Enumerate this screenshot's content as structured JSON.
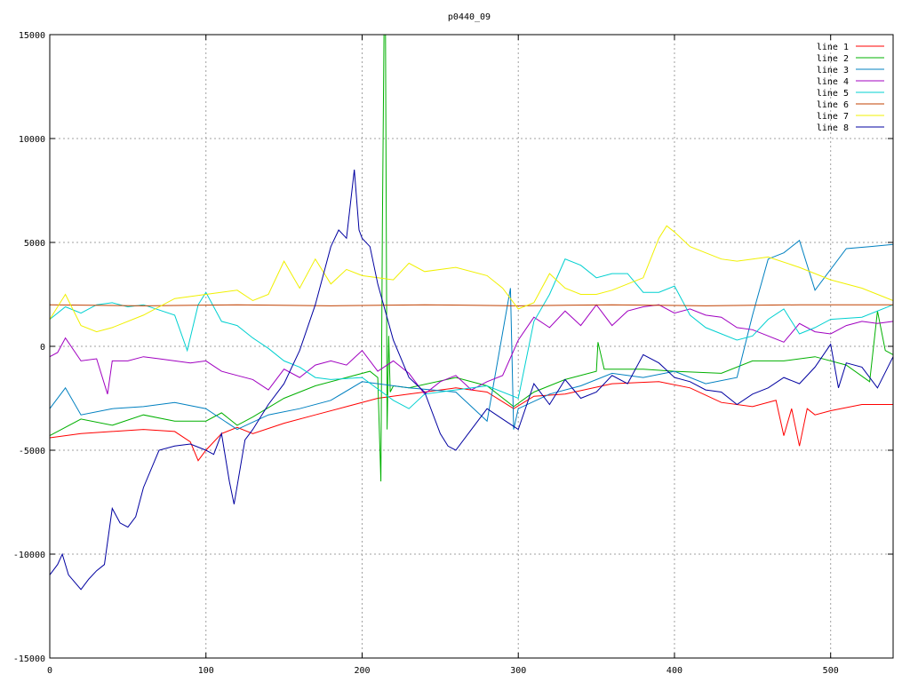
{
  "chart_data": {
    "type": "line",
    "title": "p0440_09",
    "xlabel": "",
    "ylabel": "",
    "xlim": [
      0,
      540
    ],
    "ylim": [
      -15000,
      15000
    ],
    "xticks": [
      0,
      100,
      200,
      300,
      400,
      500
    ],
    "yticks": [
      -15000,
      -10000,
      -5000,
      0,
      5000,
      10000,
      15000
    ],
    "grid": true,
    "legend_position": "top-right",
    "series": [
      {
        "name": "line 1",
        "color": "#ff0000",
        "x": [
          0,
          20,
          40,
          60,
          80,
          90,
          95,
          100,
          110,
          120,
          130,
          150,
          170,
          190,
          210,
          230,
          260,
          280,
          297,
          310,
          330,
          360,
          390,
          410,
          430,
          450,
          465,
          470,
          475,
          480,
          485,
          490,
          500,
          520,
          540
        ],
        "y": [
          -4400,
          -4200,
          -4100,
          -4000,
          -4100,
          -4600,
          -5500,
          -5000,
          -4200,
          -3900,
          -4200,
          -3700,
          -3300,
          -2900,
          -2500,
          -2300,
          -2000,
          -2200,
          -3000,
          -2400,
          -2300,
          -1800,
          -1700,
          -2000,
          -2700,
          -2900,
          -2600,
          -4300,
          -3000,
          -4800,
          -3000,
          -3300,
          -3100,
          -2800,
          -2800
        ]
      },
      {
        "name": "line 2",
        "color": "#00b000",
        "x": [
          0,
          20,
          40,
          60,
          80,
          100,
          110,
          120,
          130,
          150,
          170,
          190,
          205,
          210,
          212,
          213,
          214,
          215,
          216,
          217,
          218,
          220,
          230,
          260,
          280,
          297,
          310,
          330,
          350,
          351,
          355,
          380,
          400,
          430,
          450,
          470,
          490,
          510,
          525,
          530,
          535,
          540
        ],
        "y": [
          -4300,
          -3500,
          -3800,
          -3300,
          -3600,
          -3600,
          -3200,
          -3800,
          -3400,
          -2500,
          -1900,
          -1500,
          -1200,
          -1500,
          -6500,
          5800,
          15000,
          15000,
          -4000,
          500,
          -2200,
          -1900,
          -2000,
          -1500,
          -1900,
          -2900,
          -2200,
          -1600,
          -1200,
          200,
          -1100,
          -1100,
          -1200,
          -1300,
          -700,
          -700,
          -500,
          -900,
          -1700,
          1700,
          -200,
          -400
        ]
      },
      {
        "name": "line 3",
        "color": "#0080c0",
        "x": [
          0,
          10,
          20,
          40,
          60,
          80,
          100,
          120,
          140,
          160,
          180,
          200,
          230,
          260,
          280,
          295,
          297,
          300,
          320,
          340,
          360,
          380,
          400,
          420,
          440,
          450,
          460,
          470,
          480,
          490,
          510,
          525,
          540
        ],
        "y": [
          -3000,
          -2000,
          -3300,
          -3000,
          -2900,
          -2700,
          -3000,
          -4000,
          -3300,
          -3000,
          -2600,
          -1700,
          -2000,
          -2200,
          -3600,
          2800,
          -4000,
          -3000,
          -2300,
          -1900,
          -1300,
          -1500,
          -1200,
          -1800,
          -1500,
          1500,
          4200,
          4500,
          5100,
          2700,
          4700,
          4800,
          4900
        ]
      },
      {
        "name": "line 4",
        "color": "#a000c0",
        "x": [
          0,
          5,
          10,
          20,
          30,
          37,
          40,
          50,
          60,
          70,
          90,
          100,
          110,
          120,
          130,
          140,
          150,
          160,
          170,
          180,
          190,
          200,
          210,
          220,
          230,
          240,
          250,
          260,
          270,
          280,
          290,
          300,
          310,
          320,
          330,
          340,
          350,
          360,
          370,
          380,
          390,
          400,
          410,
          420,
          430,
          440,
          450,
          460,
          470,
          480,
          490,
          500,
          510,
          520,
          530,
          540
        ],
        "y": [
          -500,
          -300,
          400,
          -700,
          -600,
          -2300,
          -700,
          -700,
          -500,
          -600,
          -800,
          -700,
          -1200,
          -1400,
          -1600,
          -2100,
          -1100,
          -1500,
          -900,
          -700,
          -900,
          -200,
          -1200,
          -700,
          -1300,
          -2300,
          -1700,
          -1400,
          -2100,
          -1700,
          -1400,
          300,
          1400,
          900,
          1700,
          1000,
          2000,
          1000,
          1700,
          1900,
          2000,
          1600,
          1800,
          1500,
          1400,
          900,
          800,
          500,
          200,
          1100,
          700,
          600,
          1000,
          1200,
          1100,
          1200
        ]
      },
      {
        "name": "line 5",
        "color": "#00d0d0",
        "x": [
          0,
          10,
          20,
          30,
          40,
          50,
          60,
          80,
          88,
          95,
          100,
          110,
          120,
          130,
          140,
          150,
          160,
          170,
          180,
          200,
          220,
          230,
          240,
          260,
          280,
          300,
          310,
          320,
          330,
          340,
          350,
          360,
          370,
          380,
          390,
          400,
          410,
          420,
          440,
          450,
          460,
          470,
          480,
          490,
          500,
          520,
          540
        ],
        "y": [
          1300,
          1900,
          1600,
          2000,
          2100,
          1900,
          2000,
          1500,
          -200,
          2000,
          2600,
          1200,
          1000,
          400,
          -100,
          -700,
          -1000,
          -1500,
          -1600,
          -1500,
          -2600,
          -3000,
          -2300,
          -2100,
          -1900,
          -2500,
          1200,
          2500,
          4200,
          3900,
          3300,
          3500,
          3500,
          2600,
          2600,
          2900,
          1500,
          900,
          300,
          500,
          1300,
          1800,
          600,
          900,
          1300,
          1400,
          2000
        ]
      },
      {
        "name": "line 6",
        "color": "#c04000",
        "x": [
          0,
          60,
          120,
          180,
          240,
          300,
          360,
          420,
          480,
          540
        ],
        "y": [
          2000,
          1950,
          2000,
          1950,
          2000,
          1950,
          2000,
          1950,
          2000,
          2000
        ]
      },
      {
        "name": "line 7",
        "color": "#f0f000",
        "x": [
          0,
          10,
          20,
          30,
          40,
          60,
          80,
          100,
          120,
          130,
          140,
          150,
          160,
          170,
          180,
          190,
          200,
          210,
          220,
          230,
          240,
          260,
          280,
          290,
          300,
          310,
          320,
          330,
          340,
          350,
          360,
          370,
          380,
          390,
          395,
          400,
          410,
          420,
          430,
          440,
          460,
          480,
          500,
          520,
          540
        ],
        "y": [
          1300,
          2500,
          1000,
          700,
          900,
          1500,
          2300,
          2500,
          2700,
          2200,
          2500,
          4100,
          2800,
          4200,
          3000,
          3700,
          3400,
          3300,
          3200,
          4000,
          3600,
          3800,
          3400,
          2800,
          1800,
          2100,
          3500,
          2800,
          2500,
          2500,
          2700,
          3000,
          3300,
          5200,
          5800,
          5500,
          4800,
          4500,
          4200,
          4100,
          4300,
          3800,
          3200,
          2800,
          2200
        ]
      },
      {
        "name": "line 8",
        "color": "#0000a0",
        "x": [
          0,
          5,
          8,
          12,
          20,
          25,
          30,
          35,
          40,
          45,
          50,
          55,
          60,
          70,
          80,
          90,
          100,
          105,
          110,
          115,
          118,
          125,
          130,
          140,
          150,
          160,
          170,
          180,
          185,
          190,
          195,
          198,
          200,
          205,
          210,
          220,
          230,
          240,
          250,
          255,
          260,
          270,
          280,
          290,
          300,
          310,
          320,
          330,
          340,
          350,
          360,
          370,
          380,
          390,
          400,
          410,
          420,
          430,
          440,
          450,
          460,
          470,
          480,
          490,
          500,
          505,
          510,
          520,
          530,
          540
        ],
        "y": [
          -11000,
          -10500,
          -10000,
          -11000,
          -11700,
          -11200,
          -10800,
          -10500,
          -7800,
          -8500,
          -8700,
          -8200,
          -6800,
          -5000,
          -4800,
          -4700,
          -5000,
          -5200,
          -4200,
          -6500,
          -7600,
          -4500,
          -4000,
          -2800,
          -1800,
          -200,
          2000,
          4800,
          5600,
          5200,
          8500,
          5600,
          5200,
          4800,
          3000,
          300,
          -1500,
          -2200,
          -4200,
          -4800,
          -5000,
          -4000,
          -3000,
          -3500,
          -4000,
          -1800,
          -2800,
          -1600,
          -2500,
          -2200,
          -1400,
          -1800,
          -400,
          -800,
          -1500,
          -1700,
          -2100,
          -2200,
          -2800,
          -2300,
          -2000,
          -1500,
          -1800,
          -1000,
          100,
          -2000,
          -800,
          -1000,
          -2000,
          -500
        ]
      }
    ]
  }
}
